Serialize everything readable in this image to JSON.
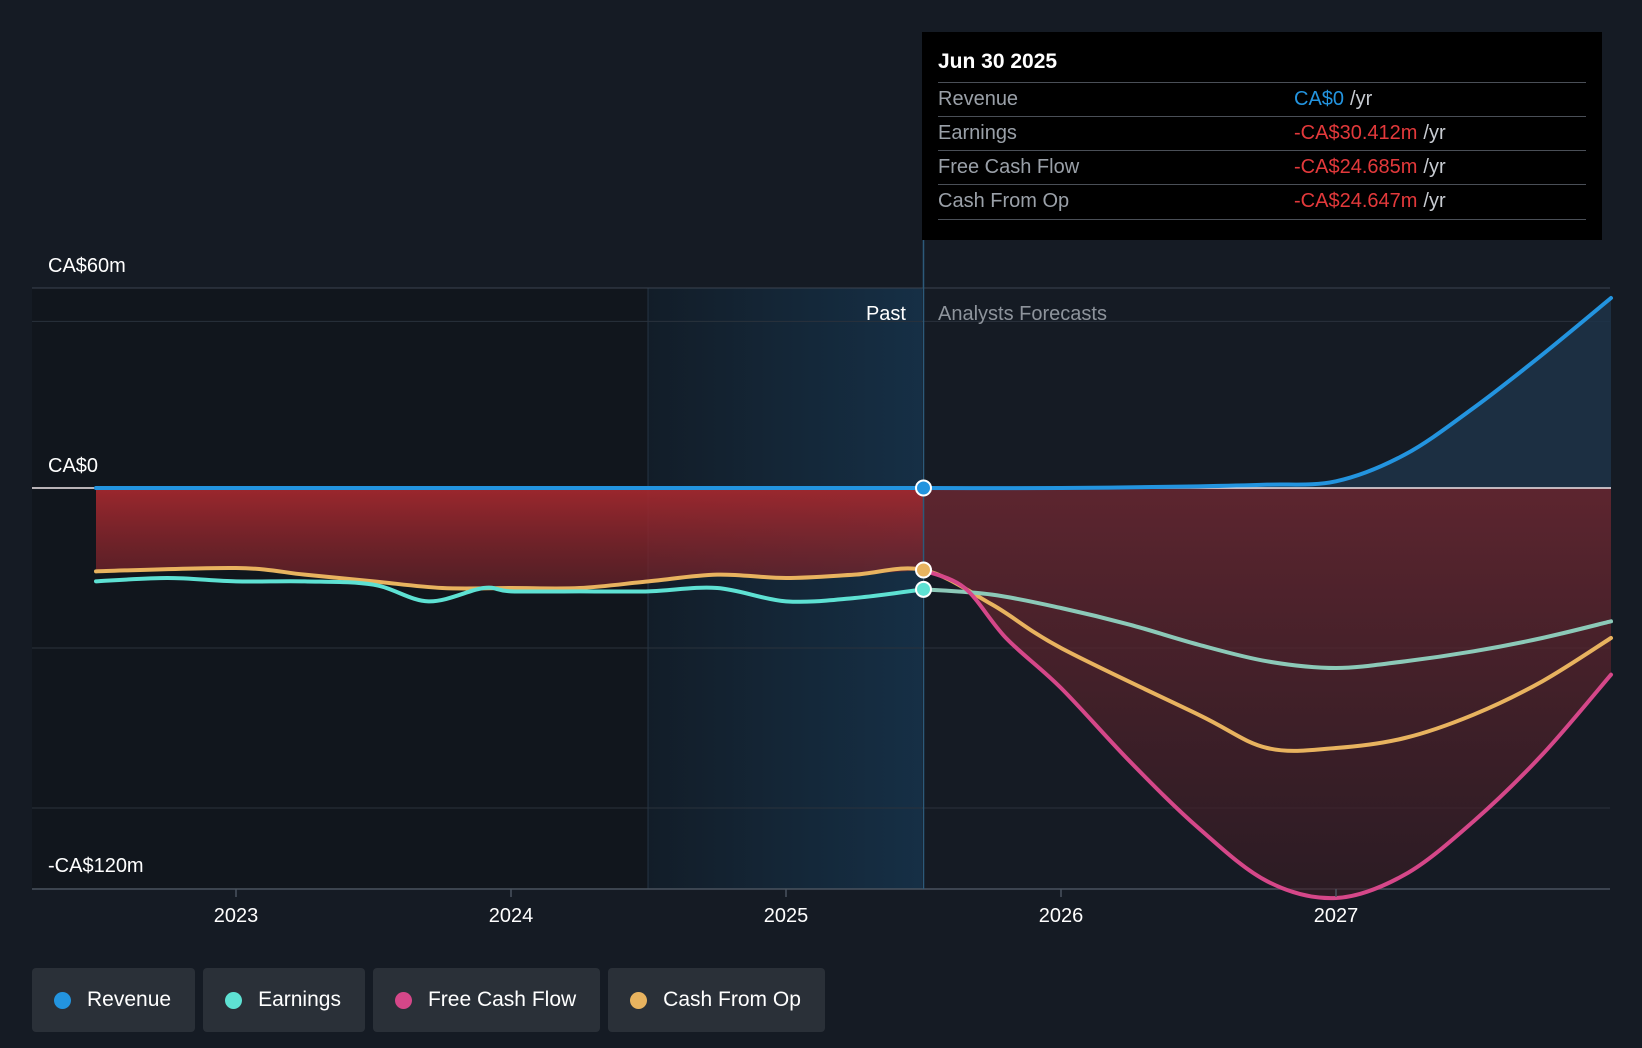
{
  "chart_data": {
    "type": "line",
    "currency_unit": "CA$m",
    "y_axis_labels": [
      "CA$60m",
      "CA$0",
      "-CA$120m"
    ],
    "ylim": [
      -120,
      60
    ],
    "x_ticks": [
      "2023",
      "2024",
      "2025",
      "2026",
      "2027"
    ],
    "x_range": [
      2022.5,
      2028.0
    ],
    "past_label": "Past",
    "forecast_label": "Analysts Forecasts",
    "divider_x": 2025.5,
    "highlight_start_x": 2024.5,
    "series": [
      {
        "name": "Revenue",
        "color": "#2394df",
        "points": [
          [
            2022.5,
            0
          ],
          [
            2023.0,
            0
          ],
          [
            2024.0,
            0
          ],
          [
            2025.0,
            0
          ],
          [
            2025.5,
            0
          ],
          [
            2026.0,
            0
          ],
          [
            2026.5,
            0.5
          ],
          [
            2026.75,
            1
          ],
          [
            2027.0,
            2
          ],
          [
            2027.25,
            10
          ],
          [
            2027.5,
            24
          ],
          [
            2027.75,
            40
          ],
          [
            2028.0,
            57
          ]
        ]
      },
      {
        "name": "Earnings",
        "color": "#5ee1d3",
        "points": [
          [
            2022.5,
            -28
          ],
          [
            2022.75,
            -27
          ],
          [
            2023.0,
            -28
          ],
          [
            2023.25,
            -28
          ],
          [
            2023.5,
            -29
          ],
          [
            2023.7,
            -34
          ],
          [
            2023.9,
            -30
          ],
          [
            2024.0,
            -31
          ],
          [
            2024.25,
            -31
          ],
          [
            2024.5,
            -31
          ],
          [
            2024.75,
            -30
          ],
          [
            2025.0,
            -34
          ],
          [
            2025.25,
            -33
          ],
          [
            2025.5,
            -30.4
          ],
          [
            2025.75,
            -32
          ],
          [
            2026.0,
            -36
          ],
          [
            2026.25,
            -41
          ],
          [
            2026.5,
            -47
          ],
          [
            2026.75,
            -52
          ],
          [
            2027.0,
            -54
          ],
          [
            2027.25,
            -52
          ],
          [
            2027.5,
            -49
          ],
          [
            2027.75,
            -45
          ],
          [
            2028.0,
            -40
          ]
        ]
      },
      {
        "name": "Free Cash Flow",
        "color": "#d54789",
        "points": [
          [
            2025.5,
            -24.7
          ],
          [
            2025.65,
            -30
          ],
          [
            2025.8,
            -45
          ],
          [
            2026.0,
            -60
          ],
          [
            2026.25,
            -82
          ],
          [
            2026.5,
            -102
          ],
          [
            2026.75,
            -118
          ],
          [
            2027.0,
            -123
          ],
          [
            2027.25,
            -116
          ],
          [
            2027.5,
            -100
          ],
          [
            2027.75,
            -80
          ],
          [
            2028.0,
            -56
          ]
        ]
      },
      {
        "name": "Cash From Op",
        "color": "#e8b35f",
        "points": [
          [
            2022.5,
            -25
          ],
          [
            2023.0,
            -24
          ],
          [
            2023.25,
            -26
          ],
          [
            2023.5,
            -28
          ],
          [
            2023.75,
            -30
          ],
          [
            2024.0,
            -30
          ],
          [
            2024.25,
            -30
          ],
          [
            2024.5,
            -28
          ],
          [
            2024.75,
            -26
          ],
          [
            2025.0,
            -27
          ],
          [
            2025.25,
            -26
          ],
          [
            2025.5,
            -24.6
          ],
          [
            2025.75,
            -35
          ],
          [
            2026.0,
            -48
          ],
          [
            2026.5,
            -68
          ],
          [
            2026.75,
            -78
          ],
          [
            2027.0,
            -78
          ],
          [
            2027.25,
            -75
          ],
          [
            2027.5,
            -68
          ],
          [
            2027.75,
            -58
          ],
          [
            2028.0,
            -45
          ]
        ]
      }
    ]
  },
  "tooltip": {
    "date": "Jun 30 2025",
    "rows": [
      {
        "label": "Revenue",
        "value": "CA$0",
        "unit": "/yr",
        "color": "#2394df"
      },
      {
        "label": "Earnings",
        "value": "-CA$30.412m",
        "unit": "/yr",
        "color": "#e3393b"
      },
      {
        "label": "Free Cash Flow",
        "value": "-CA$24.685m",
        "unit": "/yr",
        "color": "#e3393b"
      },
      {
        "label": "Cash From Op",
        "value": "-CA$24.647m",
        "unit": "/yr",
        "color": "#e3393b"
      }
    ]
  },
  "legend": [
    {
      "label": "Revenue",
      "color": "#2394df"
    },
    {
      "label": "Earnings",
      "color": "#5ee1d3"
    },
    {
      "label": "Free Cash Flow",
      "color": "#d54789"
    },
    {
      "label": "Cash From Op",
      "color": "#e8b35f"
    }
  ]
}
